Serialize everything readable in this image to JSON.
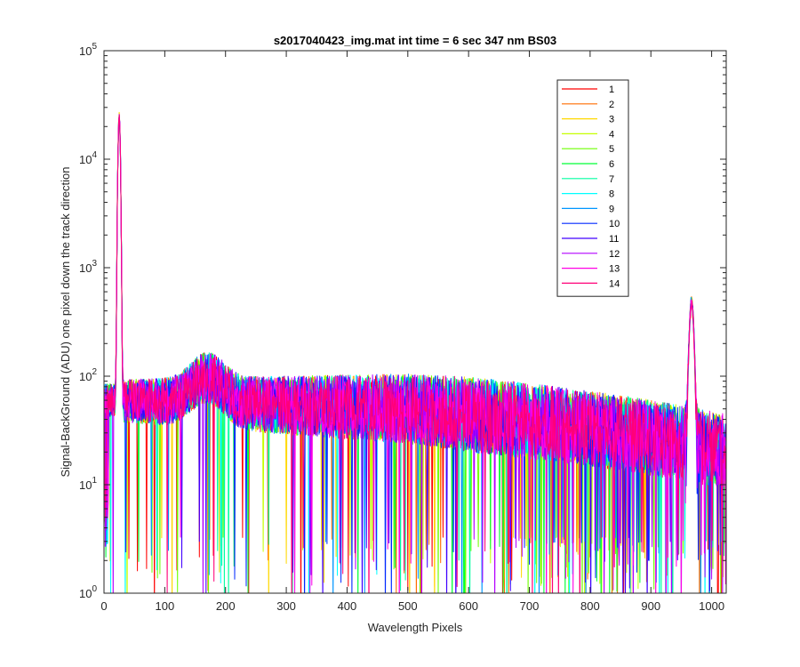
{
  "chart_data": {
    "type": "line",
    "title": "s2017040423_img.mat int time = 6 sec  347 nm BS03",
    "xlabel": "Wavelength Pixels",
    "ylabel": "Signal-BackGround (ADU) one pixel down the track direction",
    "xlim": [
      0,
      1024
    ],
    "ylim": [
      1,
      100000
    ],
    "yscale": "log",
    "x_ticks": [
      "0",
      "100",
      "200",
      "300",
      "400",
      "500",
      "600",
      "700",
      "800",
      "900",
      "1000"
    ],
    "y_ticks": [
      {
        "base": "10",
        "exp": "0"
      },
      {
        "base": "10",
        "exp": "1"
      },
      {
        "base": "10",
        "exp": "2"
      },
      {
        "base": "10",
        "exp": "3"
      },
      {
        "base": "10",
        "exp": "4"
      },
      {
        "base": "10",
        "exp": "5"
      }
    ],
    "grid": false,
    "legend_position": "top-right",
    "features": {
      "peak1": {
        "x": 25,
        "y": 27000
      },
      "broad_hump": {
        "x_center": 170,
        "y": 80
      },
      "peak2": {
        "x": 967,
        "y": 450
      },
      "baseline_start": 60,
      "baseline_mid": 50,
      "baseline_end": 20
    },
    "series": [
      {
        "name": "1",
        "color": "#ff0000"
      },
      {
        "name": "2",
        "color": "#ff6e00"
      },
      {
        "name": "3",
        "color": "#ffd800"
      },
      {
        "name": "4",
        "color": "#c6ff00"
      },
      {
        "name": "5",
        "color": "#6eff00"
      },
      {
        "name": "6",
        "color": "#00ff36"
      },
      {
        "name": "7",
        "color": "#00ffa0"
      },
      {
        "name": "8",
        "color": "#00ffff"
      },
      {
        "name": "9",
        "color": "#0096ff"
      },
      {
        "name": "10",
        "color": "#0028ff"
      },
      {
        "name": "11",
        "color": "#4100ff"
      },
      {
        "name": "12",
        "color": "#b400ff"
      },
      {
        "name": "13",
        "color": "#ff00e6"
      },
      {
        "name": "14",
        "color": "#ff0078"
      }
    ]
  }
}
